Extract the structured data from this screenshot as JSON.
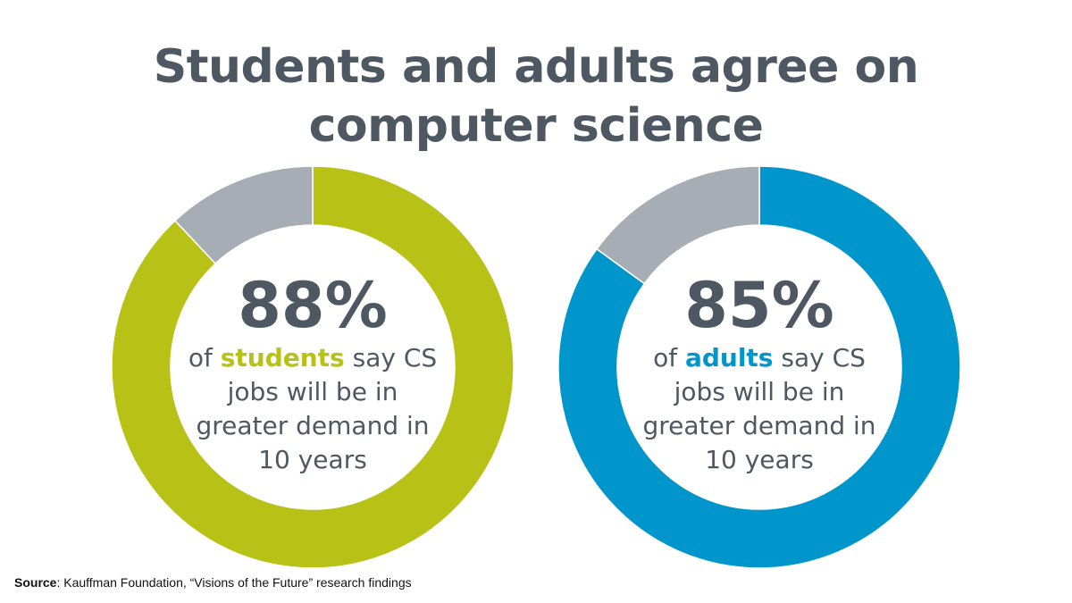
{
  "title_line1": "Students and adults agree on",
  "title_line2": "computer science",
  "chart_data": [
    {
      "type": "pie",
      "variant": "donut",
      "categories": [
        "say CS jobs will be in greater demand in 10 years",
        "other"
      ],
      "values": [
        88,
        12
      ],
      "colors": [
        "#b8c116",
        "#a7adb4"
      ],
      "center_value": "88%",
      "caption_pre": "of ",
      "caption_highlight": "students",
      "caption_post": " say CS jobs will be in greater demand in 10 years"
    },
    {
      "type": "pie",
      "variant": "donut",
      "categories": [
        "say CS jobs will be in greater demand in 10 years",
        "other"
      ],
      "values": [
        85,
        15
      ],
      "colors": [
        "#0096cc",
        "#a7adb4"
      ],
      "center_value": "85%",
      "caption_pre": "of ",
      "caption_highlight": "adults",
      "caption_post": " say CS jobs will be in greater demand in 10 years"
    }
  ],
  "source_label": "Source",
  "source_text": ": Kauffman Foundation, “Visions of the Future” research findings"
}
